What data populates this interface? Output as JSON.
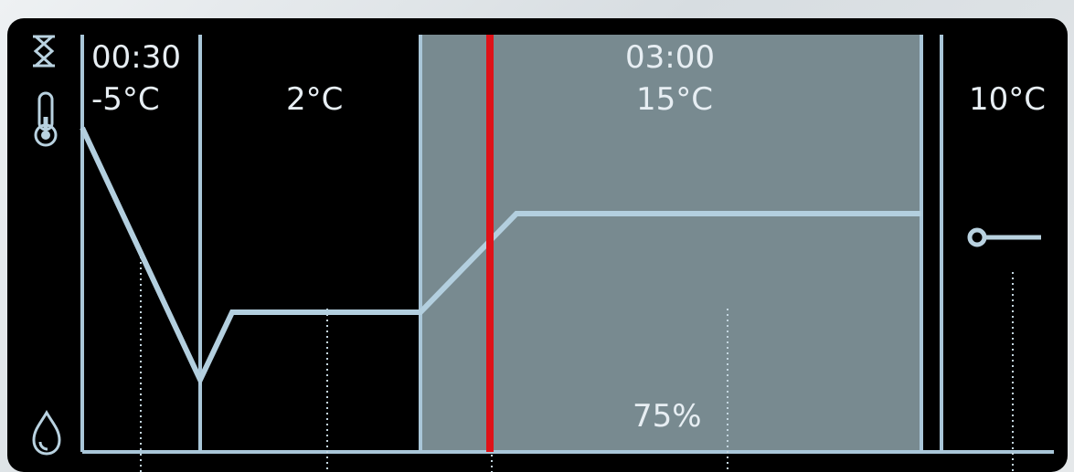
{
  "program": {
    "left_phase": {
      "time": "00:30",
      "temperature": "-5°C"
    },
    "second_phase": {
      "temperature": "2°C"
    },
    "active_phase": {
      "time": "03:00",
      "temperature": "15°C",
      "humidity": "75%"
    },
    "right_phase": {
      "temperature": "10°C"
    }
  },
  "colors": {
    "background": "#000000",
    "line": "#a9c6d8",
    "active_panel": "#788a90",
    "cursor": "#e01218",
    "text": "#b9d2e0"
  },
  "icons": {
    "timer": "hourglass-icon",
    "temperature": "thermometer-icon",
    "humidity": "water-drop-icon",
    "probe": "probe-icon"
  },
  "state": {
    "current_position_fraction": 0.14
  }
}
